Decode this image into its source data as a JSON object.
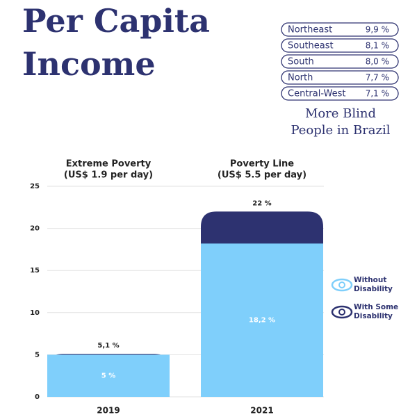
{
  "title_lines": [
    "Per Capita",
    "Income"
  ],
  "regions": [
    {
      "name": "Northeast",
      "value": "9,9 %"
    },
    {
      "name": "Southeast",
      "value": "8,1 %"
    },
    {
      "name": "South",
      "value": "8,0 %"
    },
    {
      "name": "North",
      "value": "7,7 %"
    },
    {
      "name": "Central-West",
      "value": "7,1 %"
    }
  ],
  "heading_lines": [
    "More Blind",
    "People in Brazil"
  ],
  "chart_data": {
    "type": "bar",
    "mode": "overlap",
    "categories": [
      "2019",
      "2021"
    ],
    "group_titles": [
      [
        "Extreme Poverty",
        "(US$ 1.9 per day)"
      ],
      [
        "Poverty Line",
        "(US$ 5.5 per day)"
      ]
    ],
    "series": [
      {
        "name": "With Some Disability",
        "color": "#2d3270",
        "values": [
          5.1,
          22
        ],
        "value_labels": [
          "5,1 %",
          "22 %"
        ]
      },
      {
        "name": "Without Disability",
        "color": "#7fcffb",
        "values": [
          5,
          18.2
        ],
        "value_labels": [
          "5  %",
          "18,2 %"
        ]
      }
    ],
    "ylim": [
      0,
      25
    ],
    "yticks": [
      0,
      5,
      10,
      15,
      20,
      25
    ],
    "grid": true
  }
}
